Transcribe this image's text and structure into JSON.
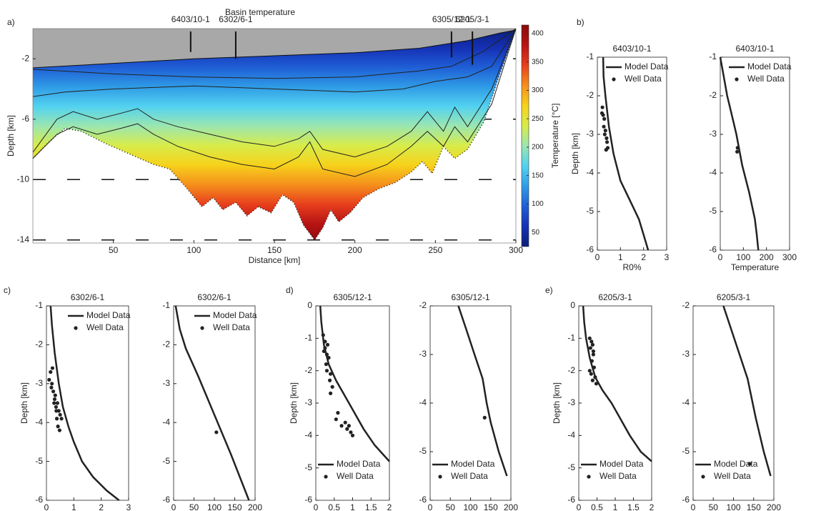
{
  "chart_data": [
    {
      "type": "section",
      "panel": "a)",
      "title": "Basin temperature",
      "xlabel": "Distance [km]",
      "ylabel": "Depth [km]",
      "xlim": [
        0,
        300
      ],
      "ylim": [
        -14.2,
        0
      ],
      "xticks": [
        50,
        100,
        150,
        200,
        250,
        300
      ],
      "yticks": [
        -2,
        -6,
        -10,
        -14
      ],
      "grid": "dashed",
      "water_color": "#a8a8a8",
      "surface": {
        "x": [
          0,
          50,
          100,
          150,
          200,
          240,
          270,
          290,
          300
        ],
        "values": [
          -2.6,
          -2.3,
          -2.0,
          -1.8,
          -1.6,
          -1.3,
          -0.8,
          -0.3,
          -0.1
        ]
      },
      "basement": {
        "x": [
          0,
          10,
          20,
          30,
          45,
          60,
          75,
          85,
          95,
          105,
          112,
          118,
          126,
          133,
          140,
          148,
          155,
          162,
          168,
          175,
          180,
          185,
          190,
          197,
          205,
          215,
          225,
          235,
          242,
          248,
          255,
          262,
          270,
          280,
          290,
          300
        ],
        "values": [
          -8.6,
          -7.5,
          -6.6,
          -6.8,
          -7.6,
          -8.3,
          -9.0,
          -9.3,
          -10.5,
          -11.8,
          -11.2,
          -12.0,
          -11.5,
          -12.4,
          -11.8,
          -12.2,
          -11.0,
          -11.5,
          -13.0,
          -14.0,
          -13.2,
          -12.0,
          -12.8,
          -12.2,
          -11.2,
          -10.6,
          -10.2,
          -9.5,
          -8.8,
          -9.6,
          -7.8,
          -8.6,
          -8.0,
          -6.2,
          -3.0,
          0
        ]
      },
      "contours": [
        {
          "x": [
            0,
            50,
            100,
            150,
            200,
            240,
            260,
            280,
            300
          ],
          "values": [
            -2.7,
            -3.0,
            -3.2,
            -3.3,
            -3.2,
            -2.8,
            -2.5,
            -1.5,
            0
          ]
        },
        {
          "x": [
            0,
            20,
            50,
            100,
            150,
            200,
            230,
            250,
            270,
            285,
            300
          ],
          "values": [
            -4.5,
            -4.2,
            -4.0,
            -3.8,
            -4.0,
            -4.2,
            -4.0,
            -3.5,
            -3.2,
            -2.5,
            0
          ]
        },
        {
          "x": [
            0,
            15,
            25,
            40,
            55,
            65,
            75,
            90,
            110,
            130,
            150,
            165,
            172,
            180,
            200,
            220,
            235,
            245,
            255,
            262,
            270,
            285,
            300
          ],
          "values": [
            -8.2,
            -6.0,
            -5.5,
            -6.0,
            -5.6,
            -5.3,
            -6.0,
            -6.5,
            -7.0,
            -7.5,
            -7.8,
            -7.3,
            -6.8,
            -8.0,
            -8.5,
            -7.8,
            -6.8,
            -5.5,
            -6.8,
            -5.2,
            -6.5,
            -4.0,
            0
          ]
        },
        {
          "x": [
            0,
            15,
            25,
            40,
            55,
            65,
            75,
            90,
            110,
            130,
            150,
            165,
            172,
            180,
            200,
            220,
            235,
            245,
            255,
            262,
            270,
            285,
            300
          ],
          "values": [
            -8.6,
            -7.0,
            -6.5,
            -7.0,
            -6.6,
            -6.3,
            -7.0,
            -7.8,
            -8.5,
            -9.0,
            -9.3,
            -8.5,
            -7.5,
            -9.3,
            -9.8,
            -9.0,
            -7.8,
            -6.8,
            -7.8,
            -6.5,
            -7.5,
            -5.0,
            0
          ]
        }
      ],
      "wells": [
        {
          "name": "6403/10-1",
          "x": 98,
          "depth": -1.55
        },
        {
          "name": "6302/6-1",
          "x": 126,
          "depth": -2.0
        },
        {
          "name": "6305/12-1",
          "x": 260,
          "depth": -1.9
        },
        {
          "name": "6205/3-1",
          "x": 273,
          "depth": -2.4
        }
      ],
      "colorbar": {
        "label": "Temperature [°C]",
        "clim": [
          25,
          415
        ],
        "ticks": [
          50,
          100,
          150,
          200,
          250,
          300,
          350,
          400
        ],
        "colormap": [
          "#0a1f7a",
          "#1531b5",
          "#1f5fd6",
          "#2f9ce6",
          "#53d2f0",
          "#9be6b0",
          "#d8ec4a",
          "#f6d21b",
          "#f5901c",
          "#e8401d",
          "#b81414",
          "#8b0a0a"
        ]
      }
    },
    {
      "type": "profile",
      "panel": "b)",
      "title": "6403/10-1",
      "xlabel": "R0%",
      "ylabel": "Depth [km]",
      "xlim": [
        0,
        3
      ],
      "ylim": [
        -6,
        -1
      ],
      "xticks": [
        0,
        1,
        2,
        3
      ],
      "yticks": [
        -1,
        -2,
        -3,
        -4,
        -5,
        -6
      ],
      "legend": "upper right",
      "series": [
        {
          "name": "Model Data",
          "color": "#222222",
          "mode": "line",
          "x": [
            0.25,
            0.27,
            0.35,
            0.5,
            0.7,
            1.0,
            1.4,
            1.8,
            2.0,
            2.2
          ],
          "values": [
            -1,
            -1.5,
            -2,
            -2.8,
            -3.5,
            -4.2,
            -4.7,
            -5.2,
            -5.6,
            -6
          ]
        },
        {
          "name": "Well Data",
          "color": "#222222",
          "mode": "markers",
          "x": [
            0.22,
            0.25,
            0.3,
            0.28,
            0.35,
            0.32,
            0.4,
            0.42,
            0.45,
            0.38,
            0.2
          ],
          "values": [
            -2.3,
            -2.5,
            -2.6,
            -2.8,
            -2.9,
            -3.0,
            -3.1,
            -3.2,
            -3.35,
            -3.4,
            -2.45
          ]
        }
      ]
    },
    {
      "type": "profile",
      "title": "6403/10-1",
      "xlabel": "Temperature",
      "xlim": [
        0,
        300
      ],
      "ylim": [
        -6,
        -1
      ],
      "xticks": [
        0,
        100,
        200,
        300
      ],
      "yticks": [
        -1,
        -2,
        -3,
        -4,
        -5,
        -6
      ],
      "legend": "upper right",
      "series": [
        {
          "name": "Model Data",
          "color": "#222222",
          "mode": "line",
          "x": [
            0,
            15,
            30,
            50,
            70,
            95,
            125,
            150,
            158,
            165
          ],
          "values": [
            -1,
            -1.5,
            -2,
            -2.5,
            -3,
            -3.8,
            -4.5,
            -5.2,
            -5.6,
            -6
          ]
        },
        {
          "name": "Well Data",
          "color": "#222222",
          "mode": "markers",
          "x": [
            75,
            73
          ],
          "values": [
            -3.35,
            -3.45
          ]
        }
      ]
    },
    {
      "type": "profile",
      "panel": "c)",
      "title": "6302/6-1",
      "xlabel": "R0%",
      "ylabel": "Depth [km]",
      "xlim": [
        0,
        3
      ],
      "ylim": [
        -6,
        -1
      ],
      "xticks": [
        0,
        1,
        2,
        3
      ],
      "yticks": [
        -1,
        -2,
        -3,
        -4,
        -5,
        -6
      ],
      "legend": "upper right",
      "series": [
        {
          "name": "Model Data",
          "color": "#222222",
          "mode": "line",
          "x": [
            0.15,
            0.2,
            0.3,
            0.45,
            0.6,
            0.8,
            1.0,
            1.3,
            1.7,
            2.2,
            2.65
          ],
          "values": [
            -1,
            -1.5,
            -2.2,
            -3,
            -3.6,
            -4.1,
            -4.5,
            -5,
            -5.4,
            -5.75,
            -6
          ]
        },
        {
          "name": "Well Data",
          "color": "#222222",
          "mode": "markers",
          "x": [
            0.1,
            0.15,
            0.2,
            0.25,
            0.18,
            0.3,
            0.28,
            0.35,
            0.4,
            0.32,
            0.45,
            0.5,
            0.38,
            0.42,
            0.55,
            0.48,
            0.22,
            0.36
          ],
          "values": [
            -2.9,
            -2.7,
            -3.0,
            -3.2,
            -3.1,
            -3.4,
            -3.5,
            -3.6,
            -3.5,
            -3.3,
            -3.7,
            -3.8,
            -3.9,
            -4.1,
            -3.9,
            -4.2,
            -2.6,
            -3.7
          ]
        }
      ]
    },
    {
      "type": "profile",
      "title": "6302/6-1",
      "xlabel": "Temperature",
      "xlim": [
        0,
        200
      ],
      "ylim": [
        -6,
        -1
      ],
      "xticks": [
        0,
        50,
        100,
        150,
        200
      ],
      "yticks": [
        -1,
        -2,
        -3,
        -4,
        -5,
        -6
      ],
      "legend": "upper right",
      "series": [
        {
          "name": "Model Data",
          "color": "#222222",
          "mode": "line",
          "x": [
            5,
            15,
            30,
            60,
            100,
            140,
            185
          ],
          "values": [
            -1,
            -1.6,
            -2.1,
            -2.8,
            -3.8,
            -4.8,
            -6
          ]
        },
        {
          "name": "Well Data",
          "color": "#222222",
          "mode": "markers",
          "x": [
            105
          ],
          "values": [
            -4.25
          ]
        }
      ]
    },
    {
      "type": "profile",
      "panel": "d)",
      "title": "6305/12-1",
      "xlabel": "R0%",
      "ylabel": "Depth [km]",
      "xlim": [
        0,
        2
      ],
      "ylim": [
        -6,
        0
      ],
      "xticks": [
        0,
        0.5,
        1,
        1.5,
        2
      ],
      "yticks": [
        0,
        -1,
        -2,
        -3,
        -4,
        -5,
        -6
      ],
      "legend": "lower left",
      "series": [
        {
          "name": "Model Data",
          "color": "#222222",
          "mode": "line",
          "x": [
            0.12,
            0.15,
            0.22,
            0.35,
            0.55,
            0.8,
            1.05,
            1.3,
            1.6,
            2.0
          ],
          "values": [
            0,
            -0.5,
            -1.2,
            -1.8,
            -2.3,
            -2.8,
            -3.3,
            -3.8,
            -4.3,
            -4.8
          ]
        },
        {
          "name": "Well Data",
          "color": "#222222",
          "mode": "markers",
          "x": [
            0.2,
            0.25,
            0.22,
            0.3,
            0.28,
            0.35,
            0.32,
            0.4,
            0.38,
            0.3,
            0.45,
            0.6,
            0.55,
            0.7,
            0.8,
            0.85,
            0.95,
            1.0,
            0.9,
            0.25,
            0.4
          ],
          "values": [
            -0.9,
            -1.1,
            -1.4,
            -1.5,
            -1.8,
            -1.6,
            -1.2,
            -2.1,
            -2.3,
            -2.0,
            -2.5,
            -3.3,
            -3.5,
            -3.7,
            -3.6,
            -3.8,
            -3.9,
            -4.0,
            -3.7,
            -1.3,
            -2.7
          ]
        }
      ]
    },
    {
      "type": "profile",
      "title": "6305/12-1",
      "xlabel": "Temperature",
      "xlim": [
        0,
        200
      ],
      "ylim": [
        -6,
        -2
      ],
      "xticks": [
        0,
        50,
        100,
        150,
        200
      ],
      "yticks": [
        -2,
        -3,
        -4,
        -5,
        -6
      ],
      "legend": "lower left",
      "series": [
        {
          "name": "Model Data",
          "color": "#222222",
          "mode": "line",
          "x": [
            70,
            90,
            110,
            130,
            140,
            150,
            170,
            190
          ],
          "values": [
            -2,
            -2.5,
            -3,
            -3.5,
            -4,
            -4.4,
            -5,
            -5.5
          ]
        },
        {
          "name": "Well Data",
          "color": "#222222",
          "mode": "markers",
          "x": [
            135
          ],
          "values": [
            -4.3
          ]
        }
      ]
    },
    {
      "type": "profile",
      "panel": "e)",
      "title": "6205/3-1",
      "xlabel": "R0%",
      "ylabel": "Depth [km]",
      "xlim": [
        0,
        2
      ],
      "ylim": [
        -6,
        0
      ],
      "xticks": [
        0,
        0.5,
        1,
        1.5,
        2
      ],
      "yticks": [
        0,
        -1,
        -2,
        -3,
        -4,
        -5,
        -6
      ],
      "legend": "lower left",
      "series": [
        {
          "name": "Model Data",
          "color": "#222222",
          "mode": "line",
          "x": [
            0.12,
            0.15,
            0.2,
            0.3,
            0.45,
            0.65,
            0.9,
            1.1,
            1.4,
            1.7,
            2.0
          ],
          "values": [
            0,
            -0.5,
            -1,
            -1.6,
            -2.2,
            -2.6,
            -3.0,
            -3.4,
            -4.0,
            -4.5,
            -4.8
          ]
        },
        {
          "name": "Well Data",
          "color": "#222222",
          "mode": "markers",
          "x": [
            0.3,
            0.35,
            0.32,
            0.38,
            0.4,
            0.36,
            0.42,
            0.3,
            0.45,
            0.38,
            0.4,
            0.48,
            0.34
          ],
          "values": [
            -1.0,
            -1.1,
            -1.3,
            -1.2,
            -1.5,
            -1.7,
            -1.9,
            -2.0,
            -2.2,
            -2.3,
            -1.4,
            -2.4,
            -2.1
          ]
        }
      ]
    },
    {
      "type": "profile",
      "title": "6205/3-1",
      "xlabel": "Temperature",
      "xlim": [
        0,
        200
      ],
      "ylim": [
        -6,
        -2
      ],
      "xticks": [
        0,
        50,
        100,
        150,
        200
      ],
      "yticks": [
        -2,
        -3,
        -4,
        -5,
        -6
      ],
      "legend": "lower left",
      "series": [
        {
          "name": "Model Data",
          "color": "#222222",
          "mode": "line",
          "x": [
            75,
            95,
            115,
            135,
            155,
            175,
            192
          ],
          "values": [
            -2,
            -2.5,
            -3,
            -3.5,
            -4.3,
            -5,
            -5.5
          ]
        },
        {
          "name": "Well Data",
          "color": "#222222",
          "mode": "markers",
          "x": [
            140
          ],
          "values": [
            -5.25
          ]
        }
      ]
    }
  ]
}
